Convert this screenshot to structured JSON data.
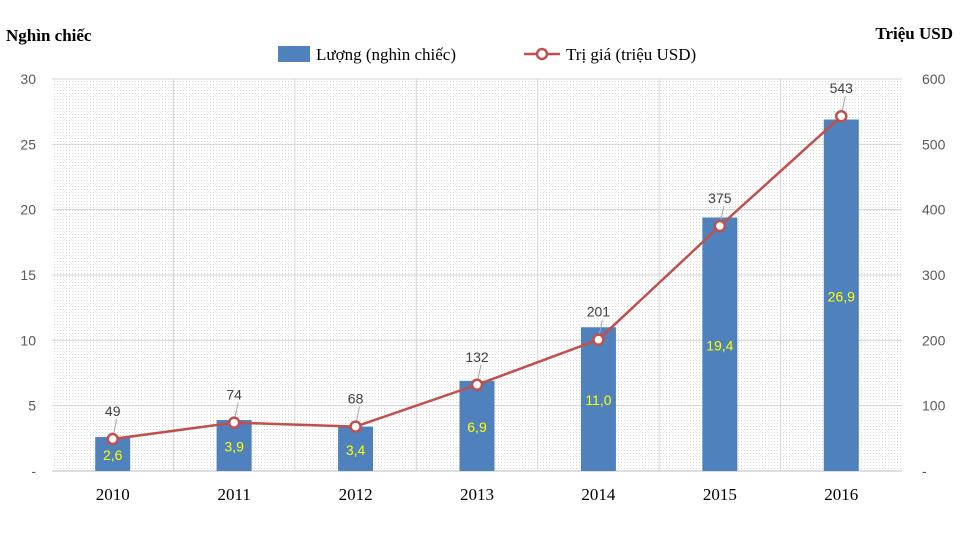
{
  "chart_data": {
    "type": "bar+line",
    "categories": [
      "2010",
      "2011",
      "2012",
      "2013",
      "2014",
      "2015",
      "2016"
    ],
    "left_axis_title": "Nghìn chiếc",
    "right_axis_title": "Triệu USD",
    "left_axis": {
      "min": 0,
      "max": 30,
      "ticks": [
        "-",
        "5",
        "10",
        "15",
        "20",
        "25",
        "30"
      ]
    },
    "right_axis": {
      "min": 0,
      "max": 600,
      "ticks": [
        "-",
        "100",
        "200",
        "300",
        "400",
        "500",
        "600"
      ]
    },
    "series": [
      {
        "name": "Lượng (nghìn chiếc)",
        "type": "bar",
        "axis": "left",
        "values": [
          2.6,
          3.9,
          3.4,
          6.9,
          11.0,
          19.4,
          26.9
        ],
        "labels": [
          "2,6",
          "3,9",
          "3,4",
          "6,9",
          "11,0",
          "19,4",
          "26,9"
        ],
        "color": "#4F81BD",
        "label_color": "#FFFF00"
      },
      {
        "name": "Trị giá (triệu USD)",
        "type": "line",
        "axis": "right",
        "values": [
          49,
          74,
          68,
          132,
          201,
          375,
          543
        ],
        "labels": [
          "49",
          "74",
          "68",
          "132",
          "201",
          "375",
          "543"
        ],
        "color": "#C0504D",
        "label_color": "#404040"
      }
    ],
    "legend_position": "top-center",
    "grid": true
  }
}
